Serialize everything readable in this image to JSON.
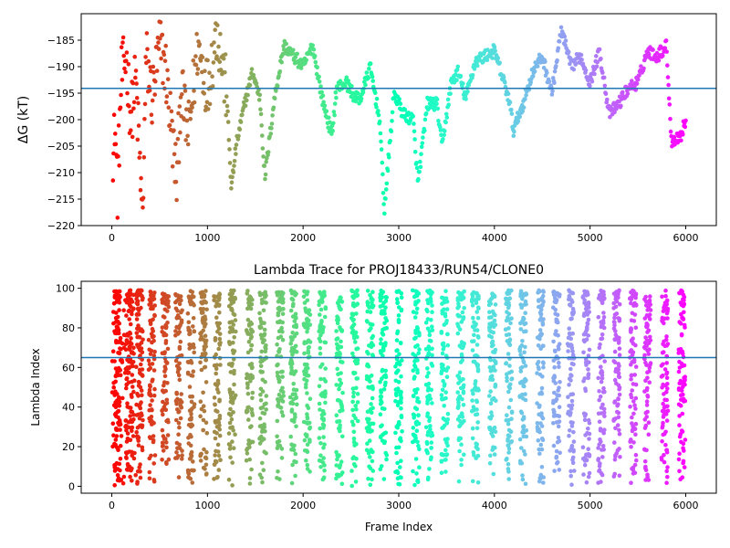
{
  "chart_data": [
    {
      "type": "scatter",
      "title": "",
      "xlabel": "",
      "ylabel": "ΔG (kT)",
      "xlim": [
        -320,
        6320
      ],
      "ylim": [
        -220,
        -180
      ],
      "xticks": [
        0,
        1000,
        2000,
        3000,
        4000,
        5000,
        6000
      ],
      "yticks": [
        -220,
        -215,
        -210,
        -205,
        -200,
        -195,
        -190,
        -185
      ],
      "x_tick_labels": [
        "0",
        "1000",
        "2000",
        "3000",
        "4000",
        "5000",
        "6000"
      ],
      "y_tick_labels": [
        "−220",
        "−215",
        "−210",
        "−205",
        "−200",
        "−195",
        "−190",
        "−185"
      ],
      "hline": -194.1,
      "hline_color": "#1f77b4",
      "colormap": "rainbow (colored by frame index)",
      "grid": false,
      "x_range_of_points": [
        0,
        6000
      ],
      "keypoints": [
        [
          0,
          -220
        ],
        [
          30,
          -200
        ],
        [
          60,
          -213
        ],
        [
          100,
          -192
        ],
        [
          150,
          -188
        ],
        [
          200,
          -200
        ],
        [
          250,
          -192
        ],
        [
          320,
          -219
        ],
        [
          360,
          -188
        ],
        [
          420,
          -196
        ],
        [
          500,
          -186
        ],
        [
          560,
          -190
        ],
        [
          680,
          -212
        ],
        [
          720,
          -194
        ],
        [
          800,
          -203
        ],
        [
          900,
          -186
        ],
        [
          1000,
          -194
        ],
        [
          1100,
          -183
        ],
        [
          1200,
          -195
        ],
        [
          1250,
          -213
        ],
        [
          1300,
          -205
        ],
        [
          1400,
          -196
        ],
        [
          1470,
          -191
        ],
        [
          1550,
          -196
        ],
        [
          1600,
          -211
        ],
        [
          1700,
          -196
        ],
        [
          1800,
          -186
        ],
        [
          1900,
          -188
        ],
        [
          2000,
          -190
        ],
        [
          2100,
          -186
        ],
        [
          2200,
          -196
        ],
        [
          2300,
          -203
        ],
        [
          2350,
          -194
        ],
        [
          2450,
          -193
        ],
        [
          2550,
          -196
        ],
        [
          2600,
          -196
        ],
        [
          2700,
          -190
        ],
        [
          2800,
          -200
        ],
        [
          2850,
          -217
        ],
        [
          2950,
          -195
        ],
        [
          3050,
          -199
        ],
        [
          3150,
          -200
        ],
        [
          3200,
          -212
        ],
        [
          3300,
          -197
        ],
        [
          3400,
          -197
        ],
        [
          3450,
          -205
        ],
        [
          3550,
          -193
        ],
        [
          3620,
          -191
        ],
        [
          3700,
          -196
        ],
        [
          3800,
          -189
        ],
        [
          3900,
          -188
        ],
        [
          4000,
          -187
        ],
        [
          4150,
          -196
        ],
        [
          4200,
          -202
        ],
        [
          4300,
          -197
        ],
        [
          4400,
          -191
        ],
        [
          4500,
          -188
        ],
        [
          4600,
          -195
        ],
        [
          4700,
          -183
        ],
        [
          4800,
          -190
        ],
        [
          4900,
          -188
        ],
        [
          5000,
          -193
        ],
        [
          5100,
          -187
        ],
        [
          5200,
          -199
        ],
        [
          5300,
          -197
        ],
        [
          5400,
          -194
        ],
        [
          5500,
          -193
        ],
        [
          5600,
          -187
        ],
        [
          5700,
          -188
        ],
        [
          5800,
          -186
        ],
        [
          5850,
          -204
        ],
        [
          5950,
          -203
        ],
        [
          6000,
          -200
        ]
      ]
    },
    {
      "type": "scatter",
      "title": "Lambda Trace for PROJ18433/RUN54/CLONE0",
      "xlabel": "Frame Index",
      "ylabel": "Lambda Index",
      "xlim": [
        -320,
        6320
      ],
      "ylim": [
        -3.5,
        103.5
      ],
      "xticks": [
        0,
        1000,
        2000,
        3000,
        4000,
        5000,
        6000
      ],
      "yticks": [
        0,
        20,
        40,
        60,
        80,
        100
      ],
      "x_tick_labels": [
        "0",
        "1000",
        "2000",
        "3000",
        "4000",
        "5000",
        "6000"
      ],
      "y_tick_labels": [
        "0",
        "20",
        "40",
        "60",
        "80",
        "100"
      ],
      "hline": 65,
      "hline_color": "#1f77b4",
      "colormap": "rainbow (colored by frame index)",
      "grid": false,
      "x_range_of_points": [
        0,
        6000
      ],
      "value_range": [
        0,
        99
      ],
      "band_centers": [
        60,
        180,
        290,
        420,
        560,
        700,
        830,
        960,
        1100,
        1260,
        1440,
        1580,
        1760,
        1900,
        2040,
        2200,
        2380,
        2540,
        2700,
        2840,
        3000,
        3180,
        3320,
        3480,
        3650,
        3800,
        3980,
        4150,
        4300,
        4480,
        4650,
        4800,
        4960,
        5120,
        5280,
        5450,
        5600,
        5780,
        5960
      ]
    }
  ]
}
